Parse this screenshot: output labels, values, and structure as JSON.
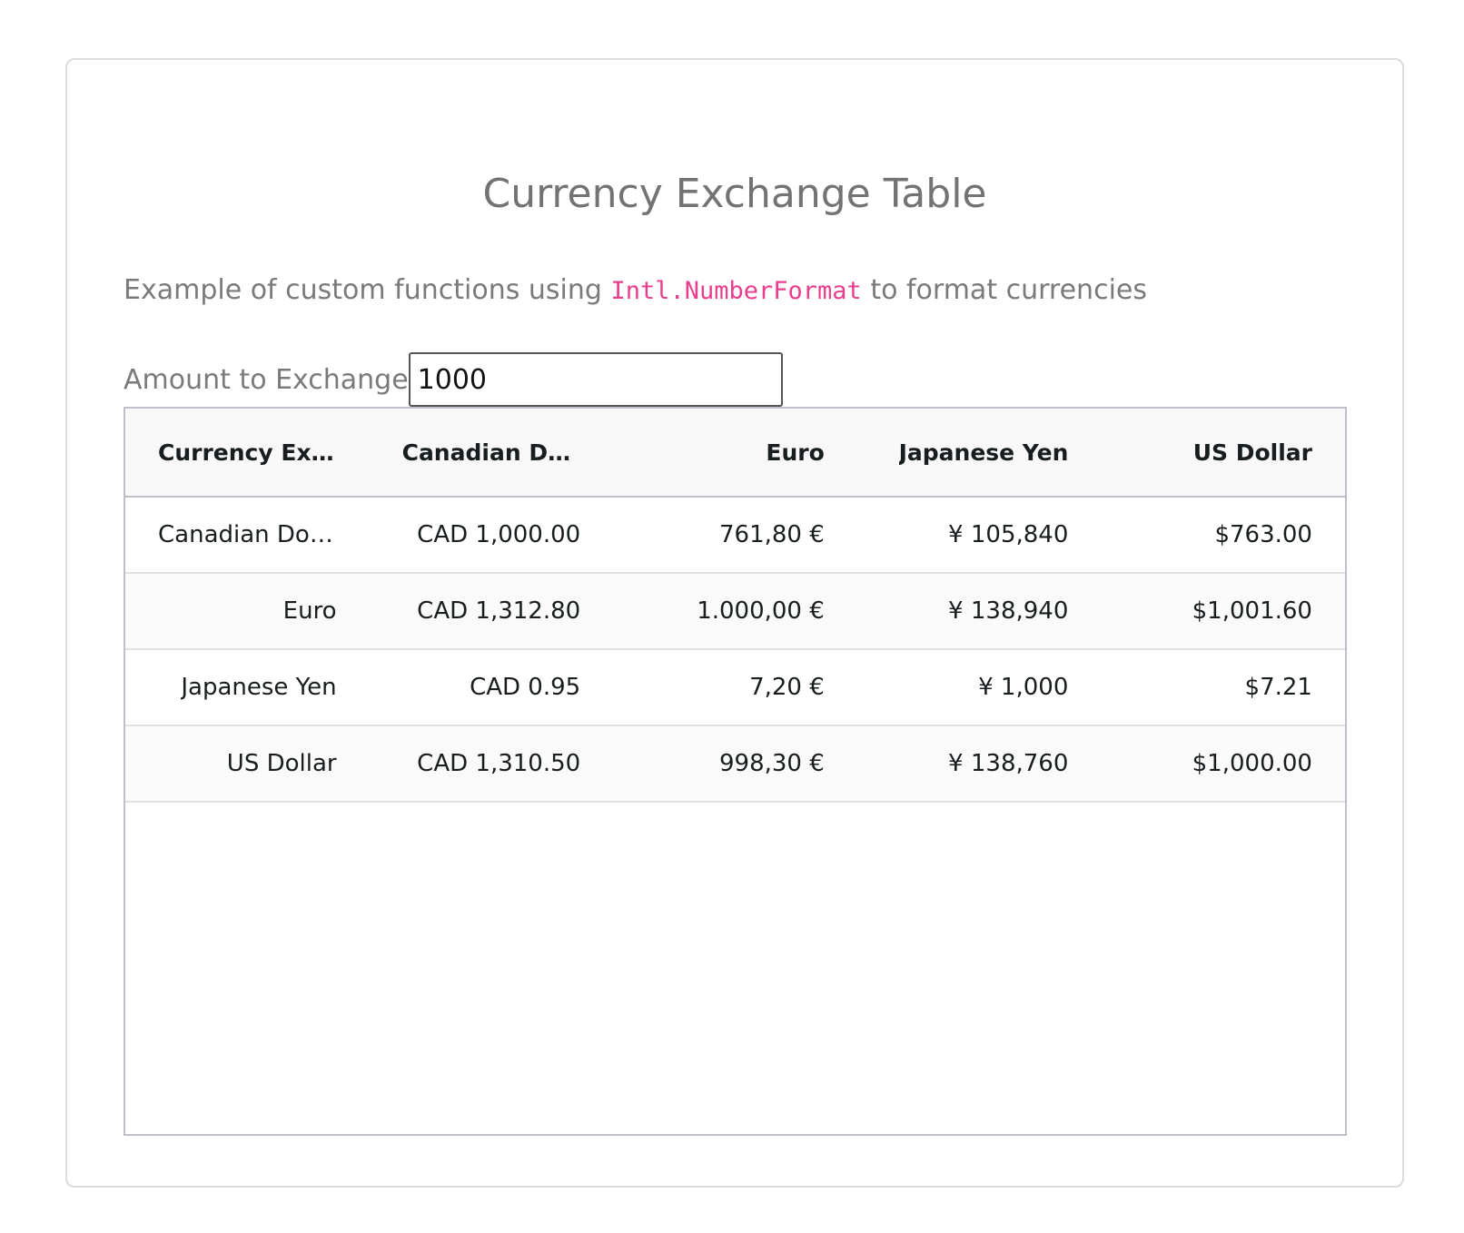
{
  "page": {
    "title": "Currency Exchange Table",
    "subtitle_before": "Example of custom functions using ",
    "subtitle_code": "Intl.NumberFormat",
    "subtitle_after": " to format currencies"
  },
  "amount": {
    "label": "Amount to Exchange",
    "value": "1000"
  },
  "grid": {
    "columns": [
      "Currency Exc…",
      "Canadian Dol…",
      "Euro",
      "Japanese Yen",
      "US Dollar"
    ],
    "rows": [
      [
        "Canadian Dol…",
        "CAD 1,000.00",
        "761,80 €",
        "¥ 105,840",
        "$763.00"
      ],
      [
        "Euro",
        "CAD 1,312.80",
        "1.000,00 €",
        "¥ 138,940",
        "$1,001.60"
      ],
      [
        "Japanese Yen",
        "CAD 0.95",
        "7,20 €",
        "¥ 1,000",
        "$7.21"
      ],
      [
        "US Dollar",
        "CAD 1,310.50",
        "998,30 €",
        "¥ 138,760",
        "$1,000.00"
      ]
    ]
  },
  "colors": {
    "code": "#e83e8c",
    "title_text": "#737373",
    "grid_border": "#bdc0c8"
  }
}
